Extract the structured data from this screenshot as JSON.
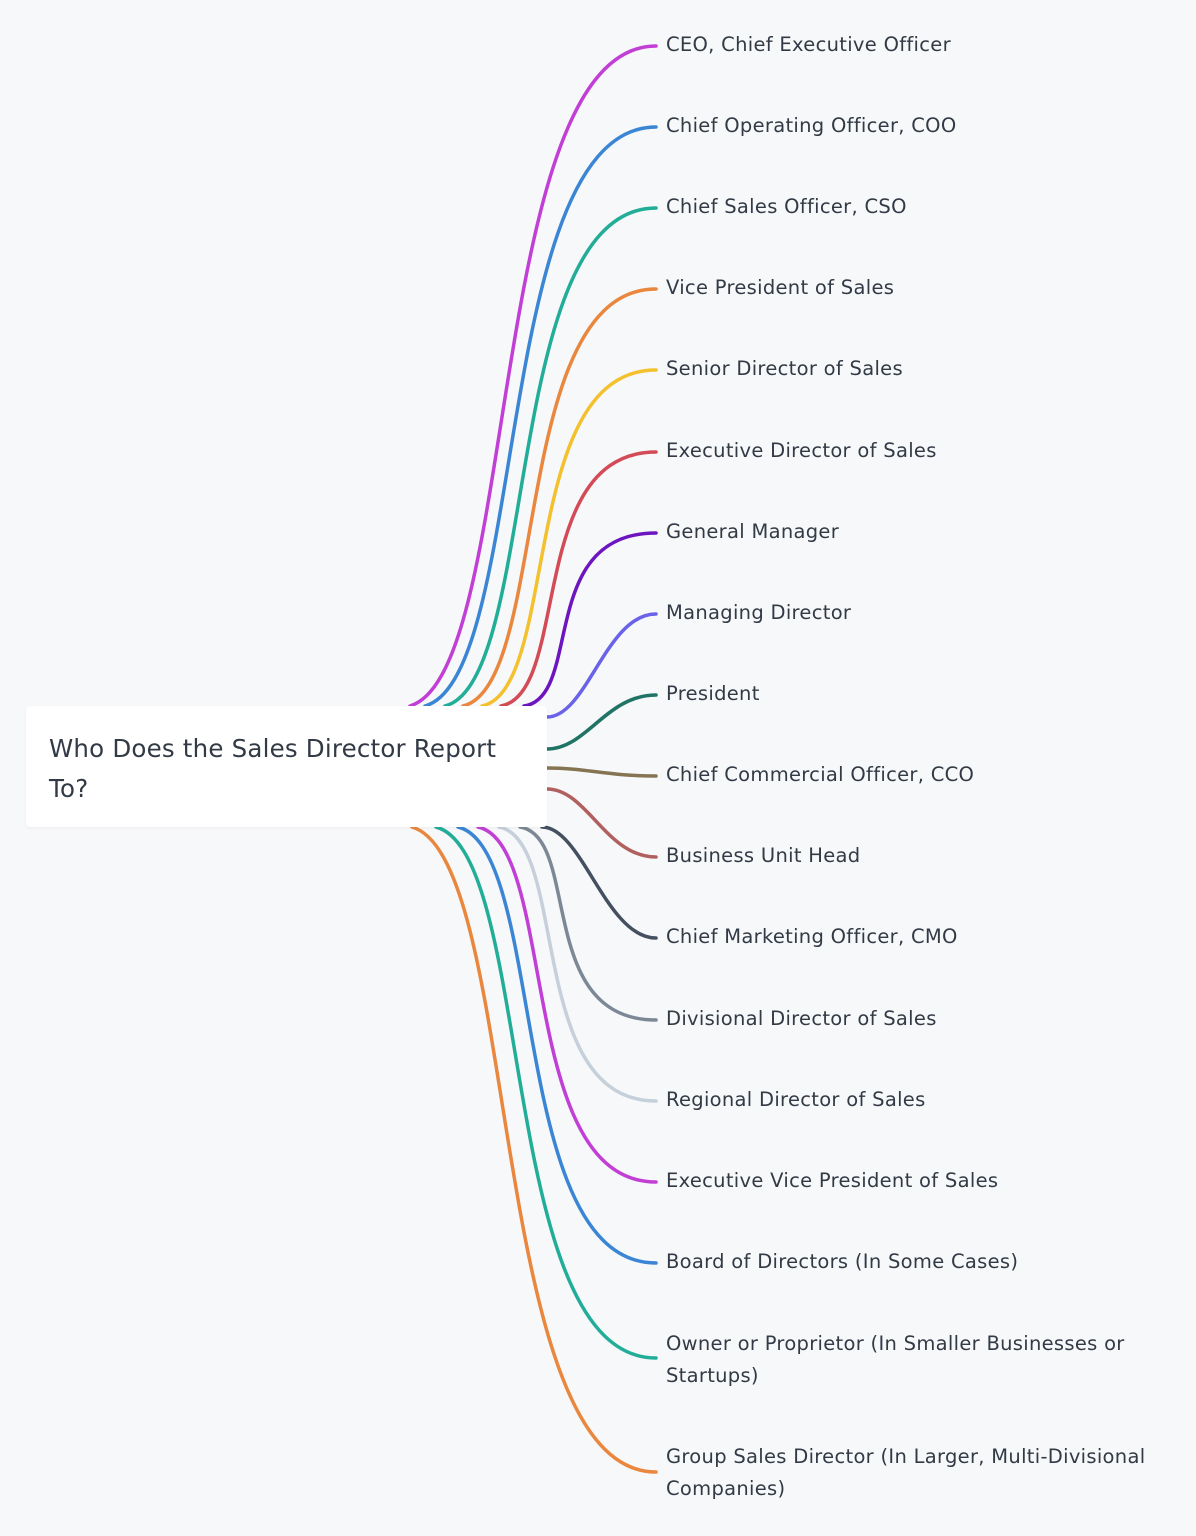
{
  "root": {
    "title": "Who Does the Sales Director Report To?"
  },
  "branches": [
    {
      "label": "CEO, Chief Executive Officer",
      "color": "#c23fd6"
    },
    {
      "label": "Chief Operating Officer, COO",
      "color": "#3b86d4"
    },
    {
      "label": "Chief Sales Officer, CSO",
      "color": "#22ad98"
    },
    {
      "label": "Vice President of Sales",
      "color": "#e9873e"
    },
    {
      "label": "Senior Director of Sales",
      "color": "#f4c12e"
    },
    {
      "label": "Executive Director of Sales",
      "color": "#d24b57"
    },
    {
      "label": "General Manager",
      "color": "#6d15bf"
    },
    {
      "label": "Managing Director",
      "color": "#6a63e8"
    },
    {
      "label": "President",
      "color": "#1f7465"
    },
    {
      "label": "Chief Commercial Officer, CCO",
      "color": "#857452"
    },
    {
      "label": "Business Unit Head",
      "color": "#b0615f"
    },
    {
      "label": "Chief Marketing Officer, CMO",
      "color": "#44505f"
    },
    {
      "label": "Divisional Director of Sales",
      "color": "#7c8896"
    },
    {
      "label": "Regional Director of Sales",
      "color": "#c6d0da"
    },
    {
      "label": "Executive Vice President of Sales",
      "color": "#c23fd6"
    },
    {
      "label": "Board of Directors (In Some Cases)",
      "color": "#3b86d4"
    },
    {
      "label": "Owner or Proprietor (In Smaller Businesses or Startups)",
      "color": "#22ad98"
    },
    {
      "label": "Group Sales Director (In Larger, Multi-Divisional Companies)",
      "color": "#e9873e"
    }
  ]
}
